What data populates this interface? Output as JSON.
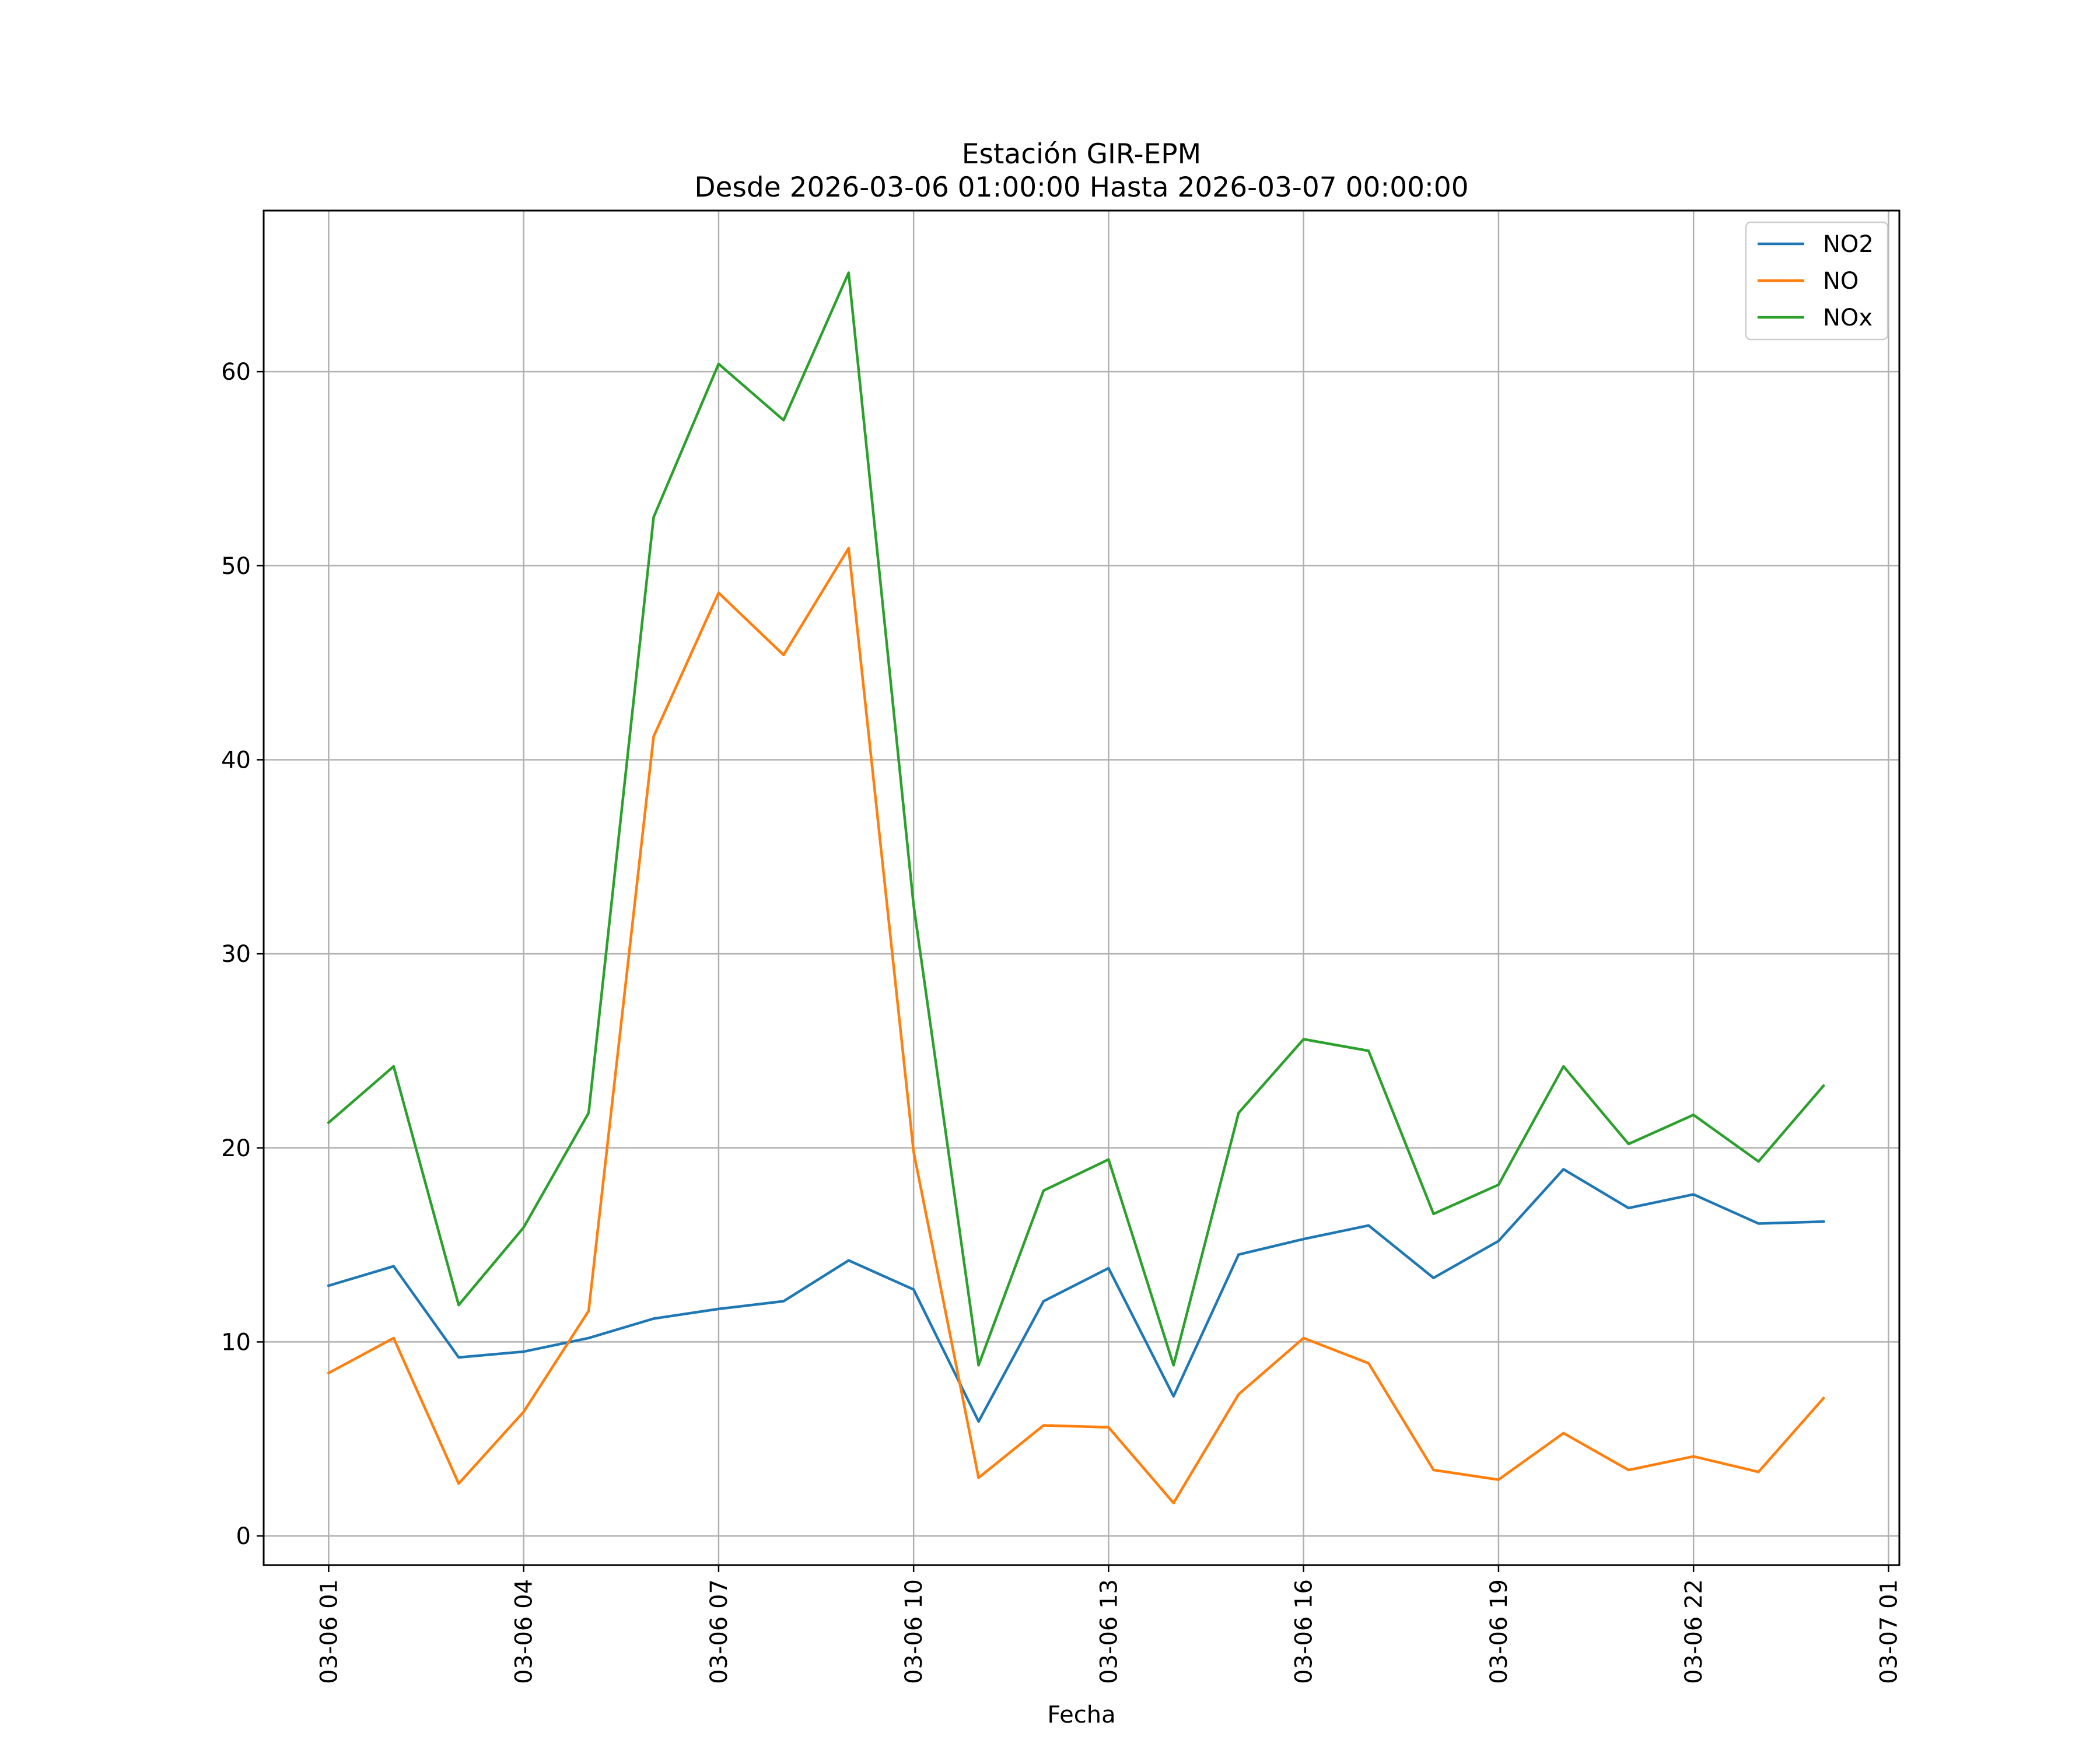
{
  "chart_data": {
    "type": "line",
    "title": "Estación GIR-EPM",
    "subtitle": "Desde 2026-03-06 01:00:00 Hasta 2026-03-07 00:00:00",
    "xlabel": "Fecha",
    "ylabel": "",
    "x": [
      "2026-03-06 01:00",
      "2026-03-06 02:00",
      "2026-03-06 03:00",
      "2026-03-06 04:00",
      "2026-03-06 05:00",
      "2026-03-06 06:00",
      "2026-03-06 07:00",
      "2026-03-06 08:00",
      "2026-03-06 09:00",
      "2026-03-06 10:00",
      "2026-03-06 11:00",
      "2026-03-06 12:00",
      "2026-03-06 13:00",
      "2026-03-06 14:00",
      "2026-03-06 15:00",
      "2026-03-06 16:00",
      "2026-03-06 17:00",
      "2026-03-06 18:00",
      "2026-03-06 19:00",
      "2026-03-06 20:00",
      "2026-03-06 21:00",
      "2026-03-06 22:00",
      "2026-03-06 23:00",
      "2026-03-07 00:00"
    ],
    "xlim": [
      "2026-03-06 00:00",
      "2026-03-07 01:10"
    ],
    "x_ticks": [
      "03-06 01",
      "03-06 04",
      "03-06 07",
      "03-06 10",
      "03-06 13",
      "03-06 16",
      "03-06 19",
      "03-06 22",
      "03-07 01"
    ],
    "x_tick_values": [
      "2026-03-06 01:00",
      "2026-03-06 04:00",
      "2026-03-06 07:00",
      "2026-03-06 10:00",
      "2026-03-06 13:00",
      "2026-03-06 16:00",
      "2026-03-06 19:00",
      "2026-03-06 22:00",
      "2026-03-07 01:00"
    ],
    "y_ticks": [
      0,
      10,
      20,
      30,
      40,
      50,
      60
    ],
    "ylim": [
      -1.5,
      68.3
    ],
    "grid": true,
    "legend_position": "top-right",
    "series": [
      {
        "name": "NO2",
        "color": "#1f77b4",
        "values": [
          12.9,
          13.9,
          9.2,
          9.5,
          10.2,
          11.2,
          11.7,
          12.1,
          14.2,
          12.7,
          5.9,
          12.1,
          13.8,
          7.2,
          14.5,
          15.3,
          16.0,
          13.3,
          15.2,
          18.9,
          16.9,
          17.6,
          16.1,
          16.2
        ]
      },
      {
        "name": "NO",
        "color": "#ff7f0e",
        "values": [
          8.4,
          10.2,
          2.7,
          6.4,
          11.6,
          41.2,
          48.6,
          45.4,
          50.9,
          19.8,
          3.0,
          5.7,
          5.6,
          1.7,
          7.3,
          10.2,
          8.9,
          3.4,
          2.9,
          5.3,
          3.4,
          4.1,
          3.3,
          7.1
        ]
      },
      {
        "name": "NOx",
        "color": "#2ca02c",
        "values": [
          21.3,
          24.2,
          11.9,
          15.9,
          21.8,
          52.5,
          60.4,
          57.5,
          65.1,
          32.5,
          8.8,
          17.8,
          19.4,
          8.8,
          21.8,
          25.6,
          25.0,
          16.6,
          18.1,
          24.2,
          20.2,
          21.7,
          19.3,
          23.2
        ]
      }
    ]
  }
}
